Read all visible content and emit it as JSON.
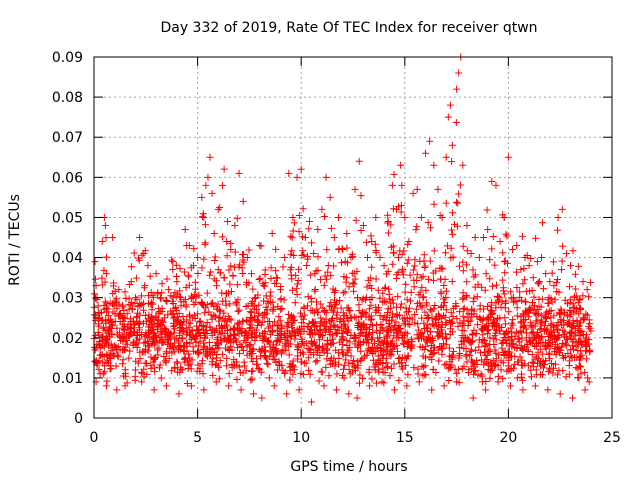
{
  "chart_data": {
    "type": "scatter",
    "title": "Day 332 of 2019, Rate Of TEC Index for receiver qtwn",
    "xlabel": "GPS time / hours",
    "ylabel": "ROTI / TECUs",
    "xlim": [
      0,
      25
    ],
    "ylim": [
      0,
      0.09
    ],
    "xticks": [
      0,
      5,
      10,
      15,
      20,
      25
    ],
    "xtick_labels": [
      "0",
      "5",
      "10",
      "15",
      "20",
      "25"
    ],
    "yticks": [
      0,
      0.01,
      0.02,
      0.03,
      0.04,
      0.05,
      0.06,
      0.07,
      0.08,
      0.09
    ],
    "ytick_labels": [
      "0",
      "0.01",
      "0.02",
      "0.03",
      "0.04",
      "0.05",
      "0.06",
      "0.07",
      "0.08",
      "0.09"
    ],
    "grid": true,
    "marker": "plus",
    "color": "#ff0000",
    "series": [
      {
        "name": "ROTI",
        "points": [
          [
            0.05,
            0.039
          ],
          [
            0.1,
            0.033
          ],
          [
            0.2,
            0.025
          ],
          [
            0.3,
            0.018
          ],
          [
            0.4,
            0.044
          ],
          [
            0.5,
            0.05
          ],
          [
            0.55,
            0.048
          ],
          [
            0.6,
            0.036
          ],
          [
            0.7,
            0.022
          ],
          [
            0.8,
            0.015
          ],
          [
            0.9,
            0.045
          ],
          [
            1.0,
            0.028
          ],
          [
            1.2,
            0.032
          ],
          [
            1.4,
            0.019
          ],
          [
            1.6,
            0.026
          ],
          [
            1.8,
            0.034
          ],
          [
            2.0,
            0.03
          ],
          [
            2.2,
            0.045
          ],
          [
            2.4,
            0.041
          ],
          [
            2.6,
            0.038
          ],
          [
            2.8,
            0.027
          ],
          [
            3.0,
            0.036
          ],
          [
            3.2,
            0.03
          ],
          [
            3.4,
            0.025
          ],
          [
            3.6,
            0.032
          ],
          [
            3.8,
            0.039
          ],
          [
            4.0,
            0.034
          ],
          [
            4.2,
            0.028
          ],
          [
            4.4,
            0.047
          ],
          [
            4.6,
            0.043
          ],
          [
            4.8,
            0.038
          ],
          [
            5.0,
            0.04
          ],
          [
            5.2,
            0.055
          ],
          [
            5.3,
            0.05
          ],
          [
            5.4,
            0.058
          ],
          [
            5.5,
            0.06
          ],
          [
            5.6,
            0.065
          ],
          [
            5.7,
            0.056
          ],
          [
            5.8,
            0.046
          ],
          [
            6.0,
            0.052
          ],
          [
            6.2,
            0.058
          ],
          [
            6.4,
            0.044
          ],
          [
            6.6,
            0.042
          ],
          [
            6.8,
            0.048
          ],
          [
            7.0,
            0.061
          ],
          [
            7.2,
            0.054
          ],
          [
            7.4,
            0.04
          ],
          [
            7.6,
            0.036
          ],
          [
            7.8,
            0.03
          ],
          [
            8.0,
            0.043
          ],
          [
            8.2,
            0.033
          ],
          [
            8.4,
            0.029
          ],
          [
            8.6,
            0.046
          ],
          [
            8.8,
            0.035
          ],
          [
            9.0,
            0.032
          ],
          [
            9.2,
            0.04
          ],
          [
            9.4,
            0.061
          ],
          [
            9.6,
            0.05
          ],
          [
            9.8,
            0.06
          ],
          [
            10.0,
            0.062
          ],
          [
            10.2,
            0.045
          ],
          [
            10.4,
            0.049
          ],
          [
            10.6,
            0.041
          ],
          [
            10.8,
            0.047
          ],
          [
            11.0,
            0.052
          ],
          [
            11.2,
            0.06
          ],
          [
            11.4,
            0.055
          ],
          [
            11.6,
            0.045
          ],
          [
            11.8,
            0.05
          ],
          [
            12.0,
            0.042
          ],
          [
            12.2,
            0.046
          ],
          [
            12.4,
            0.04
          ],
          [
            12.6,
            0.057
          ],
          [
            12.8,
            0.064
          ],
          [
            13.0,
            0.048
          ],
          [
            13.2,
            0.04
          ],
          [
            13.4,
            0.044
          ],
          [
            13.6,
            0.05
          ],
          [
            13.8,
            0.04
          ],
          [
            14.0,
            0.038
          ],
          [
            14.2,
            0.049
          ],
          [
            14.4,
            0.058
          ],
          [
            14.6,
            0.052
          ],
          [
            14.8,
            0.063
          ],
          [
            15.0,
            0.05
          ],
          [
            15.2,
            0.044
          ],
          [
            15.4,
            0.056
          ],
          [
            15.6,
            0.057
          ],
          [
            15.8,
            0.05
          ],
          [
            16.0,
            0.066
          ],
          [
            16.2,
            0.069
          ],
          [
            16.4,
            0.063
          ],
          [
            16.6,
            0.057
          ],
          [
            16.8,
            0.05
          ],
          [
            17.0,
            0.065
          ],
          [
            17.1,
            0.075
          ],
          [
            17.2,
            0.078
          ],
          [
            17.3,
            0.068
          ],
          [
            17.5,
            0.082
          ],
          [
            17.6,
            0.086
          ],
          [
            17.7,
            0.09
          ],
          [
            17.8,
            0.063
          ],
          [
            18.0,
            0.048
          ],
          [
            18.2,
            0.041
          ],
          [
            18.4,
            0.045
          ],
          [
            18.6,
            0.04
          ],
          [
            18.8,
            0.045
          ],
          [
            19.0,
            0.047
          ],
          [
            19.2,
            0.059
          ],
          [
            19.4,
            0.058
          ],
          [
            19.6,
            0.044
          ],
          [
            19.8,
            0.05
          ],
          [
            20.0,
            0.065
          ],
          [
            20.2,
            0.042
          ],
          [
            20.4,
            0.043
          ],
          [
            20.6,
            0.037
          ],
          [
            20.8,
            0.04
          ],
          [
            21.0,
            0.038
          ],
          [
            21.2,
            0.035
          ],
          [
            21.4,
            0.039
          ],
          [
            21.6,
            0.04
          ],
          [
            21.8,
            0.036
          ],
          [
            22.0,
            0.034
          ],
          [
            22.2,
            0.033
          ],
          [
            22.4,
            0.05
          ],
          [
            22.6,
            0.052
          ],
          [
            22.8,
            0.041
          ],
          [
            23.0,
            0.038
          ],
          [
            23.2,
            0.03
          ],
          [
            23.4,
            0.026
          ],
          [
            23.6,
            0.034
          ],
          [
            23.8,
            0.032
          ],
          [
            0.1,
            0.009
          ],
          [
            0.3,
            0.011
          ],
          [
            0.6,
            0.008
          ],
          [
            1.1,
            0.007
          ],
          [
            1.5,
            0.008
          ],
          [
            2.3,
            0.009
          ],
          [
            2.9,
            0.007
          ],
          [
            3.5,
            0.008
          ],
          [
            4.1,
            0.006
          ],
          [
            4.7,
            0.008
          ],
          [
            5.3,
            0.007
          ],
          [
            5.9,
            0.009
          ],
          [
            6.5,
            0.008
          ],
          [
            7.1,
            0.007
          ],
          [
            7.7,
            0.006
          ],
          [
            8.1,
            0.005
          ],
          [
            8.7,
            0.008
          ],
          [
            9.3,
            0.006
          ],
          [
            9.9,
            0.007
          ],
          [
            10.5,
            0.004
          ],
          [
            11.1,
            0.008
          ],
          [
            11.7,
            0.007
          ],
          [
            12.3,
            0.006
          ],
          [
            12.7,
            0.005
          ],
          [
            13.3,
            0.008
          ],
          [
            13.9,
            0.009
          ],
          [
            14.5,
            0.007
          ],
          [
            15.1,
            0.008
          ],
          [
            15.7,
            0.009
          ],
          [
            16.3,
            0.007
          ],
          [
            16.9,
            0.008
          ],
          [
            17.5,
            0.009
          ],
          [
            18.3,
            0.005
          ],
          [
            18.9,
            0.007
          ],
          [
            19.5,
            0.009
          ],
          [
            20.1,
            0.008
          ],
          [
            20.7,
            0.007
          ],
          [
            21.3,
            0.008
          ],
          [
            21.9,
            0.007
          ],
          [
            22.5,
            0.006
          ],
          [
            23.1,
            0.005
          ],
          [
            23.7,
            0.007
          ],
          [
            23.9,
            0.009
          ],
          [
            2.0,
            0.012
          ],
          [
            4.0,
            0.014
          ],
          [
            6.0,
            0.013
          ],
          [
            8.0,
            0.012
          ],
          [
            10.0,
            0.014
          ],
          [
            12.0,
            0.016
          ],
          [
            14.0,
            0.017
          ],
          [
            16.0,
            0.015
          ],
          [
            18.0,
            0.014
          ],
          [
            20.0,
            0.013
          ],
          [
            22.0,
            0.012
          ],
          [
            23.5,
            0.011
          ],
          [
            1.0,
            0.018
          ],
          [
            3.0,
            0.02
          ],
          [
            5.0,
            0.022
          ],
          [
            7.0,
            0.021
          ],
          [
            9.0,
            0.02
          ],
          [
            11.0,
            0.024
          ],
          [
            13.0,
            0.026
          ],
          [
            15.0,
            0.025
          ],
          [
            17.0,
            0.027
          ],
          [
            19.0,
            0.022
          ],
          [
            21.0,
            0.02
          ],
          [
            23.0,
            0.017
          ]
        ]
      }
    ]
  }
}
